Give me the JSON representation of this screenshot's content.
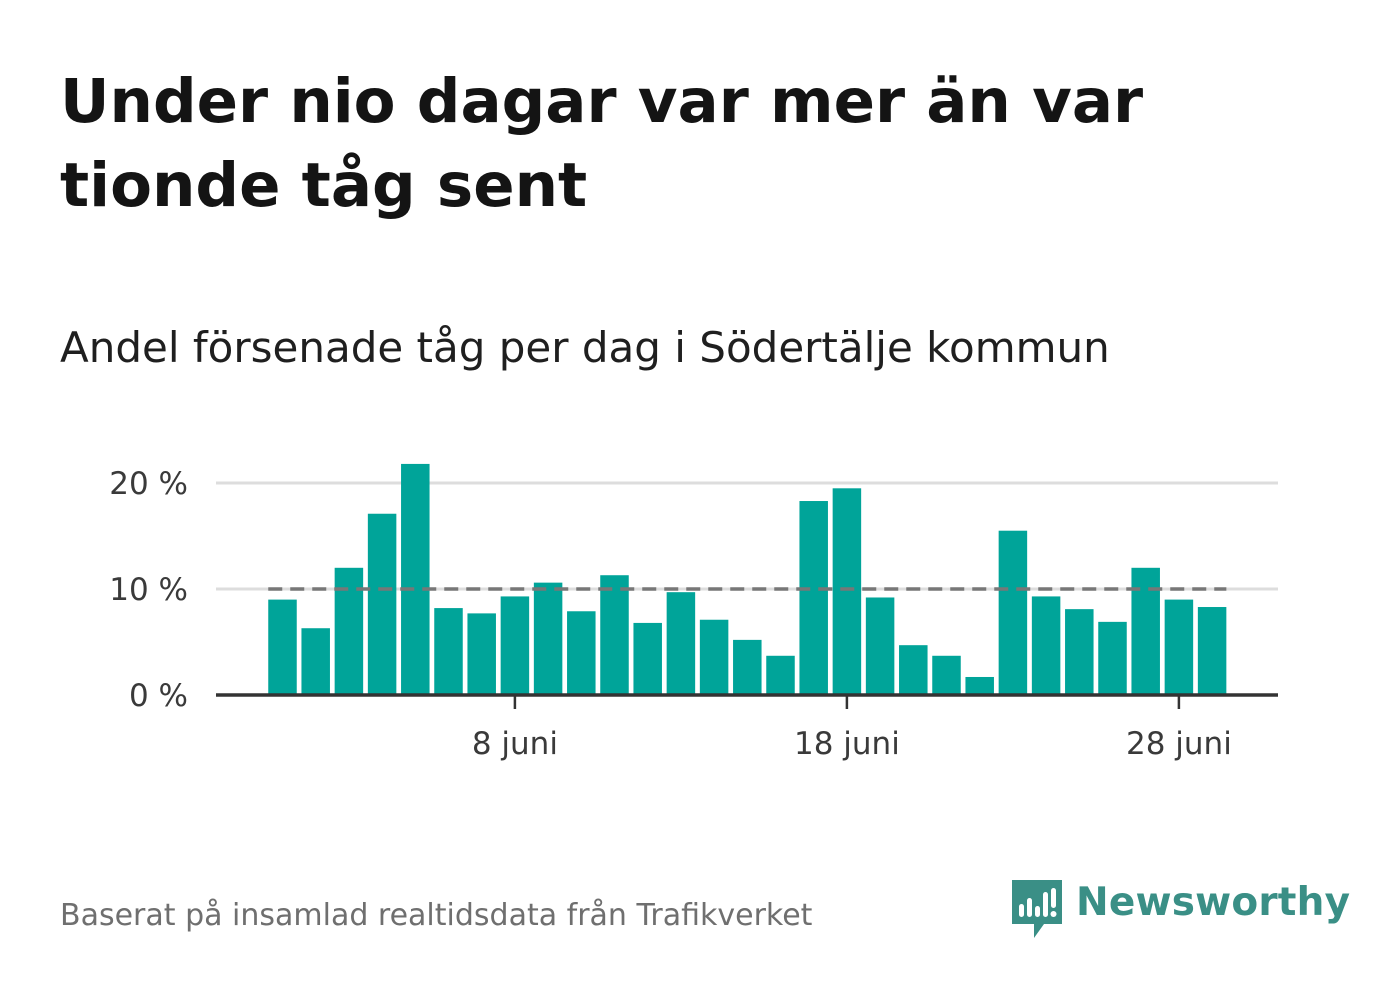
{
  "title": "Under nio dagar var mer än var tionde tåg sent",
  "subtitle": "Andel försenade tåg per dag i Södertälje kommun",
  "source": "Baserat på insamlad realtidsdata från Trafikverket",
  "brand": {
    "name": "Newsworthy",
    "icon": "newsworthy-logo-icon",
    "color": "#3a8f86"
  },
  "colors": {
    "bar": "#00a499",
    "reference_line": "#777777",
    "grid": "#dddddd",
    "axis": "#333333"
  },
  "chart_data": {
    "type": "bar",
    "unit": "%",
    "x": [
      "1 juni",
      "2 juni",
      "3 juni",
      "4 juni",
      "5 juni",
      "6 juni",
      "7 juni",
      "8 juni",
      "9 juni",
      "10 juni",
      "11 juni",
      "12 juni",
      "13 juni",
      "14 juni",
      "15 juni",
      "16 juni",
      "17 juni",
      "18 juni",
      "19 juni",
      "20 juni",
      "21 juni",
      "22 juni",
      "23 juni",
      "24 juni",
      "25 juni",
      "26 juni",
      "27 juni",
      "28 juni",
      "29 juni"
    ],
    "values": [
      9.0,
      6.3,
      12.0,
      17.1,
      21.8,
      8.2,
      7.7,
      9.3,
      10.6,
      7.9,
      11.3,
      6.8,
      9.7,
      7.1,
      5.2,
      3.7,
      18.3,
      19.5,
      9.2,
      4.7,
      3.7,
      1.7,
      15.5,
      9.3,
      8.1,
      6.9,
      12.0,
      9.0,
      8.3
    ],
    "ylim": [
      0,
      22
    ],
    "yticks": [
      0,
      10,
      20
    ],
    "ytick_labels": [
      "0 %",
      "10 %",
      "20 %"
    ],
    "xtick_positions": [
      "8 juni",
      "18 juni",
      "28 juni"
    ],
    "xtick_labels": [
      "8 juni",
      "18 juni",
      "28 juni"
    ],
    "reference_line": 10,
    "grid": true,
    "xlabel": "",
    "ylabel": ""
  }
}
